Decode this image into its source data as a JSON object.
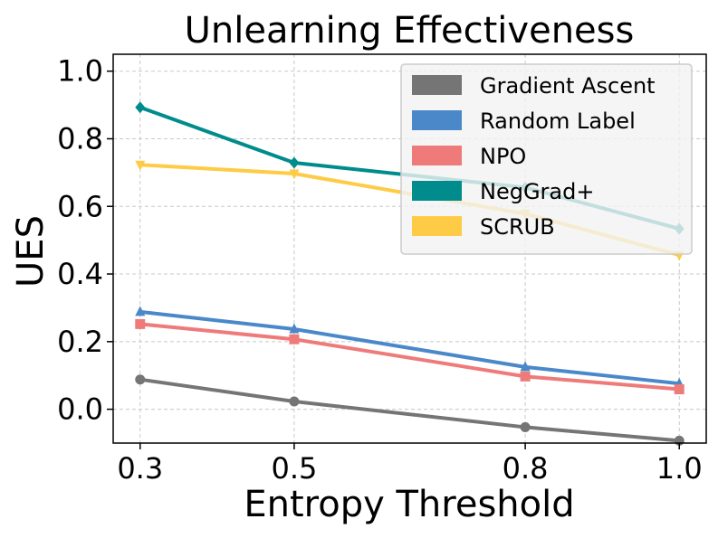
{
  "chart_data": {
    "type": "line",
    "title": "Unlearning Effectiveness",
    "xlabel": "Entropy Threshold",
    "ylabel": "UES",
    "x": [
      0.3,
      0.5,
      0.8,
      1.0
    ],
    "x_tick_labels": [
      "0.3",
      "0.5",
      "0.8",
      "1.0"
    ],
    "xlim": [
      0.265,
      1.035
    ],
    "ylim": [
      -0.1,
      1.05
    ],
    "y_ticks": [
      0.0,
      0.2,
      0.4,
      0.6,
      0.8,
      1.0
    ],
    "y_tick_labels": [
      "0.0",
      "0.2",
      "0.4",
      "0.6",
      "0.8",
      "1.0"
    ],
    "grid": true,
    "legend_position": "top-right",
    "series": [
      {
        "name": "Gradient Ascent",
        "color": "#757575",
        "marker": "circle",
        "values": [
          0.088,
          0.023,
          -0.053,
          -0.093
        ]
      },
      {
        "name": "Random Label",
        "color": "#4a88ca",
        "marker": "triangle-up",
        "values": [
          0.288,
          0.237,
          0.125,
          0.076
        ]
      },
      {
        "name": "NPO",
        "color": "#ef7a7a",
        "marker": "square",
        "values": [
          0.252,
          0.207,
          0.097,
          0.059
        ]
      },
      {
        "name": "NegGrad+",
        "color": "#008c8c",
        "marker": "diamond",
        "values": [
          0.893,
          0.729,
          0.656,
          0.534
        ]
      },
      {
        "name": "SCRUB",
        "color": "#fdcb45",
        "marker": "triangle-down",
        "values": [
          0.723,
          0.697,
          0.578,
          0.456
        ]
      }
    ]
  }
}
